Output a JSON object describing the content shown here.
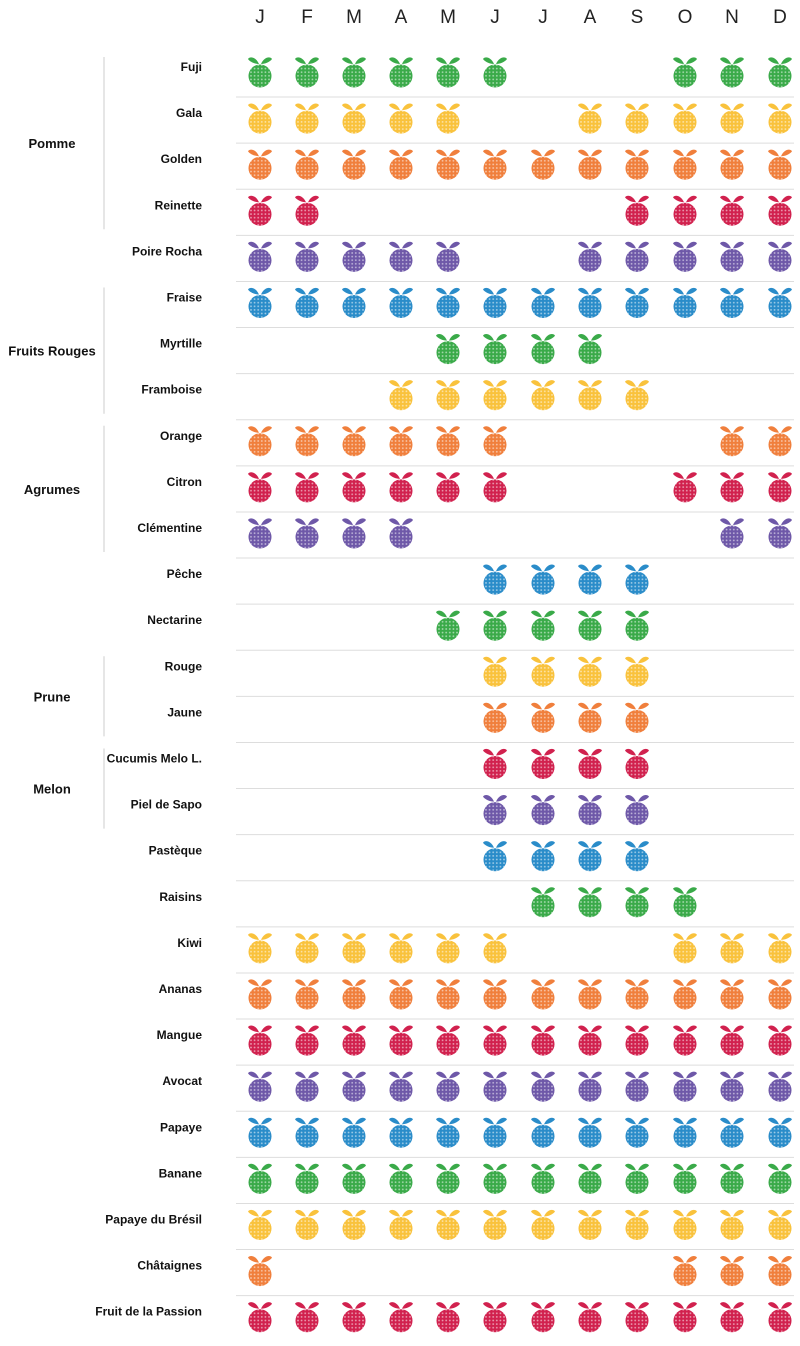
{
  "chart_data": {
    "type": "table",
    "title": "",
    "months": [
      "J",
      "F",
      "M",
      "A",
      "M",
      "J",
      "J",
      "A",
      "S",
      "O",
      "N",
      "D"
    ],
    "colors": {
      "green": "#3aaa49",
      "yellow": "#f9c23c",
      "orange": "#f07f3c",
      "red": "#d1214e",
      "purple": "#6e58a8",
      "blue": "#2a8cc9"
    },
    "icon": "fruit-icon",
    "groups": [
      {
        "name": "Pomme",
        "rows": [
          0,
          3
        ]
      },
      {
        "name": "Fruits Rouges",
        "rows": [
          5,
          7
        ]
      },
      {
        "name": "Agrumes",
        "rows": [
          8,
          10
        ]
      },
      {
        "name": "Prune",
        "rows": [
          13,
          14
        ]
      },
      {
        "name": "Melon",
        "rows": [
          15,
          16
        ]
      }
    ],
    "rows": [
      {
        "label": "Fuji",
        "color": "green",
        "months": [
          1,
          1,
          1,
          1,
          1,
          1,
          0,
          0,
          0,
          1,
          1,
          1
        ]
      },
      {
        "label": "Gala",
        "color": "yellow",
        "months": [
          1,
          1,
          1,
          1,
          1,
          0,
          0,
          1,
          1,
          1,
          1,
          1
        ]
      },
      {
        "label": "Golden",
        "color": "orange",
        "months": [
          1,
          1,
          1,
          1,
          1,
          1,
          1,
          1,
          1,
          1,
          1,
          1
        ]
      },
      {
        "label": "Reinette",
        "color": "red",
        "months": [
          1,
          1,
          0,
          0,
          0,
          0,
          0,
          0,
          1,
          1,
          1,
          1
        ]
      },
      {
        "label": "Poire Rocha",
        "color": "purple",
        "months": [
          1,
          1,
          1,
          1,
          1,
          0,
          0,
          1,
          1,
          1,
          1,
          1
        ]
      },
      {
        "label": "Fraise",
        "color": "blue",
        "months": [
          1,
          1,
          1,
          1,
          1,
          1,
          1,
          1,
          1,
          1,
          1,
          1
        ]
      },
      {
        "label": "Myrtille",
        "color": "green",
        "months": [
          0,
          0,
          0,
          0,
          1,
          1,
          1,
          1,
          0,
          0,
          0,
          0
        ]
      },
      {
        "label": "Framboise",
        "color": "yellow",
        "months": [
          0,
          0,
          0,
          1,
          1,
          1,
          1,
          1,
          1,
          0,
          0,
          0
        ]
      },
      {
        "label": "Orange",
        "color": "orange",
        "months": [
          1,
          1,
          1,
          1,
          1,
          1,
          0,
          0,
          0,
          0,
          1,
          1
        ]
      },
      {
        "label": "Citron",
        "color": "red",
        "months": [
          1,
          1,
          1,
          1,
          1,
          1,
          0,
          0,
          0,
          1,
          1,
          1
        ]
      },
      {
        "label": "Clémentine",
        "color": "purple",
        "months": [
          1,
          1,
          1,
          1,
          0,
          0,
          0,
          0,
          0,
          0,
          1,
          1
        ]
      },
      {
        "label": "Pêche",
        "color": "blue",
        "months": [
          0,
          0,
          0,
          0,
          0,
          1,
          1,
          1,
          1,
          0,
          0,
          0
        ]
      },
      {
        "label": "Nectarine",
        "color": "green",
        "months": [
          0,
          0,
          0,
          0,
          1,
          1,
          1,
          1,
          1,
          0,
          0,
          0
        ]
      },
      {
        "label": "Rouge",
        "color": "yellow",
        "months": [
          0,
          0,
          0,
          0,
          0,
          1,
          1,
          1,
          1,
          0,
          0,
          0
        ]
      },
      {
        "label": "Jaune",
        "color": "orange",
        "months": [
          0,
          0,
          0,
          0,
          0,
          1,
          1,
          1,
          1,
          0,
          0,
          0
        ]
      },
      {
        "label": "Cucumis Melo L.",
        "color": "red",
        "months": [
          0,
          0,
          0,
          0,
          0,
          1,
          1,
          1,
          1,
          0,
          0,
          0
        ]
      },
      {
        "label": "Piel de Sapo",
        "color": "purple",
        "months": [
          0,
          0,
          0,
          0,
          0,
          1,
          1,
          1,
          1,
          0,
          0,
          0
        ]
      },
      {
        "label": "Pastèque",
        "color": "blue",
        "months": [
          0,
          0,
          0,
          0,
          0,
          1,
          1,
          1,
          1,
          0,
          0,
          0
        ]
      },
      {
        "label": "Raisins",
        "color": "green",
        "months": [
          0,
          0,
          0,
          0,
          0,
          0,
          1,
          1,
          1,
          1,
          0,
          0
        ]
      },
      {
        "label": "Kiwi",
        "color": "yellow",
        "months": [
          1,
          1,
          1,
          1,
          1,
          1,
          0,
          0,
          0,
          1,
          1,
          1
        ]
      },
      {
        "label": "Ananas",
        "color": "orange",
        "months": [
          1,
          1,
          1,
          1,
          1,
          1,
          1,
          1,
          1,
          1,
          1,
          1
        ]
      },
      {
        "label": "Mangue",
        "color": "red",
        "months": [
          1,
          1,
          1,
          1,
          1,
          1,
          1,
          1,
          1,
          1,
          1,
          1
        ]
      },
      {
        "label": "Avocat",
        "color": "purple",
        "months": [
          1,
          1,
          1,
          1,
          1,
          1,
          1,
          1,
          1,
          1,
          1,
          1
        ]
      },
      {
        "label": "Papaye",
        "color": "blue",
        "months": [
          1,
          1,
          1,
          1,
          1,
          1,
          1,
          1,
          1,
          1,
          1,
          1
        ]
      },
      {
        "label": "Banane",
        "color": "green",
        "months": [
          1,
          1,
          1,
          1,
          1,
          1,
          1,
          1,
          1,
          1,
          1,
          1
        ]
      },
      {
        "label": "Papaye du Brésil",
        "color": "yellow",
        "months": [
          1,
          1,
          1,
          1,
          1,
          1,
          1,
          1,
          1,
          1,
          1,
          1
        ]
      },
      {
        "label": "Châtaignes",
        "color": "orange",
        "months": [
          1,
          0,
          0,
          0,
          0,
          0,
          0,
          0,
          0,
          1,
          1,
          1
        ]
      },
      {
        "label": "Fruit de la Passion",
        "color": "red",
        "months": [
          1,
          1,
          1,
          1,
          1,
          1,
          1,
          1,
          1,
          1,
          1,
          1
        ]
      }
    ]
  }
}
